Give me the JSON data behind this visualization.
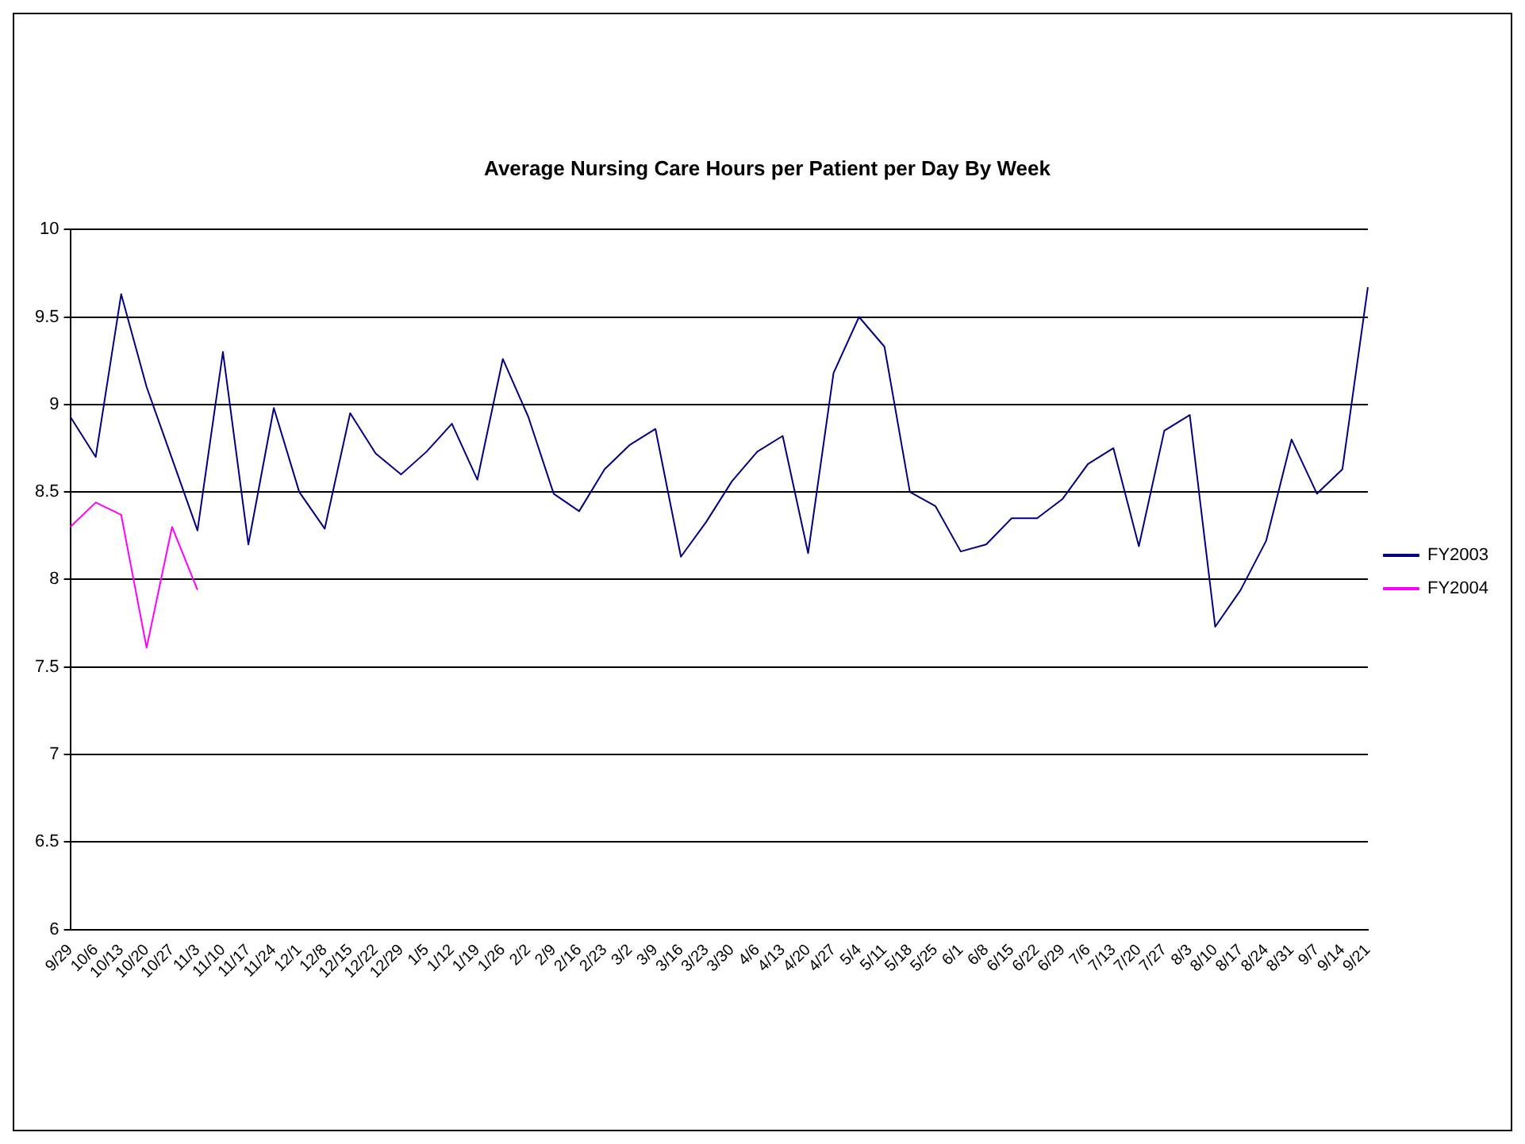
{
  "chart_data": {
    "type": "line",
    "title": "Average Nursing Care Hours per Patient per Day By Week",
    "categories": [
      "9/29",
      "10/6",
      "10/13",
      "10/20",
      "10/27",
      "11/3",
      "11/10",
      "11/17",
      "11/24",
      "12/1",
      "12/8",
      "12/15",
      "12/22",
      "12/29",
      "1/5",
      "1/12",
      "1/19",
      "1/26",
      "2/2",
      "2/9",
      "2/16",
      "2/23",
      "3/2",
      "3/9",
      "3/16",
      "3/23",
      "3/30",
      "4/6",
      "4/13",
      "4/20",
      "4/27",
      "5/4",
      "5/11",
      "5/18",
      "5/25",
      "6/1",
      "6/8",
      "6/15",
      "6/22",
      "6/29",
      "7/6",
      "7/13",
      "7/20",
      "7/27",
      "8/3",
      "8/10",
      "8/17",
      "8/24",
      "8/31",
      "9/7",
      "9/14",
      "9/21"
    ],
    "series": [
      {
        "name": "FY2003",
        "color": "#000080",
        "values": [
          8.93,
          8.7,
          9.63,
          9.1,
          8.69,
          8.28,
          9.3,
          8.2,
          8.98,
          8.5,
          8.29,
          8.95,
          8.72,
          8.6,
          8.73,
          8.89,
          8.57,
          9.26,
          8.93,
          8.49,
          8.39,
          8.63,
          8.77,
          8.86,
          8.13,
          8.33,
          8.56,
          8.73,
          8.82,
          8.15,
          9.18,
          9.5,
          9.33,
          8.5,
          8.42,
          8.16,
          8.2,
          8.35,
          8.35,
          8.46,
          8.66,
          8.75,
          8.19,
          8.85,
          8.94,
          7.73,
          7.94,
          8.22,
          8.8,
          8.49,
          8.63,
          9.67
        ]
      },
      {
        "name": "FY2004",
        "color": "#ff00ff",
        "values": [
          8.3,
          8.44,
          8.37,
          7.61,
          8.3,
          7.94,
          null,
          null,
          null,
          null,
          null,
          null,
          null,
          null,
          null,
          null,
          null,
          null,
          null,
          null,
          null,
          null,
          null,
          null,
          null,
          null,
          null,
          null,
          null,
          null,
          null,
          null,
          null,
          null,
          null,
          null,
          null,
          null,
          null,
          null,
          null,
          null,
          null,
          null,
          null,
          null,
          null,
          null,
          null,
          null,
          null,
          null
        ]
      }
    ],
    "ylim": [
      6,
      10
    ],
    "yticks": [
      6,
      6.5,
      7,
      7.5,
      8,
      8.5,
      9,
      9.5,
      10
    ],
    "grid": "y",
    "legend": "right",
    "marker": "none",
    "line_style": "solid"
  }
}
